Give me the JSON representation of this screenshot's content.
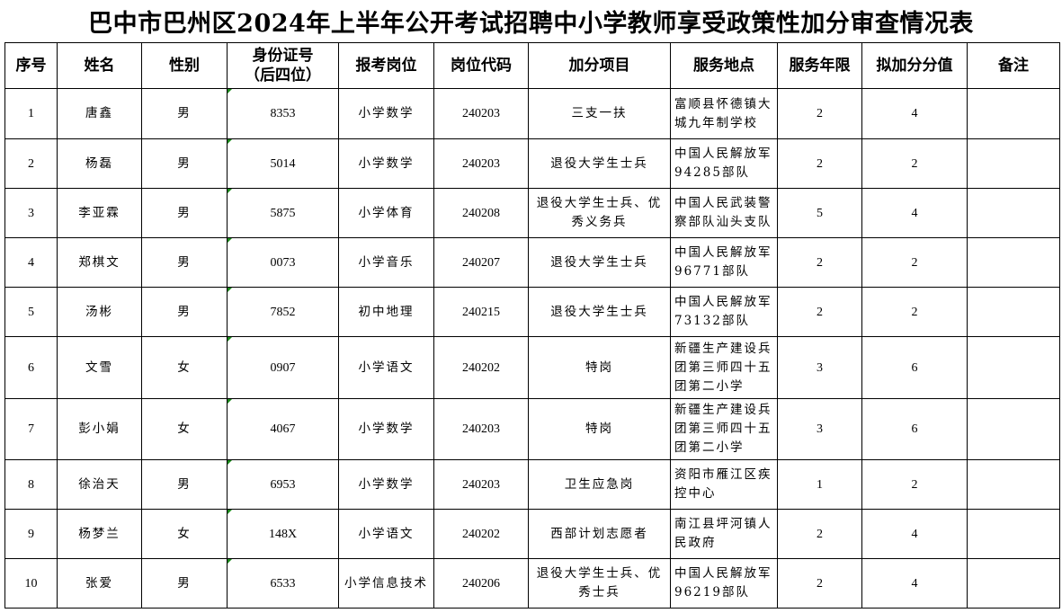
{
  "title": "巴中市巴州区2024年上半年公开考试招聘中小学教师享受政策性加分审查情况表",
  "headers": [
    "序号",
    "姓名",
    "性别",
    "身份证号\n（后四位）",
    "报考岗位",
    "岗位代码",
    "加分项目",
    "服务地点",
    "服务年限",
    "拟加分分值",
    "备注"
  ],
  "header_id_line1": "身份证号",
  "header_id_line2": "（后四位）",
  "rows": [
    {
      "no": "1",
      "name": "唐鑫",
      "gender": "男",
      "id": "8353",
      "post": "小学数学",
      "code": "240203",
      "item": "三支一扶",
      "place": "富顺县怀德镇大城九年制学校",
      "years": "2",
      "points": "4",
      "note": ""
    },
    {
      "no": "2",
      "name": "杨磊",
      "gender": "男",
      "id": "5014",
      "post": "小学数学",
      "code": "240203",
      "item": "退役大学生士兵",
      "place": "中国人民解放军94285部队",
      "years": "2",
      "points": "2",
      "note": ""
    },
    {
      "no": "3",
      "name": "李亚霖",
      "gender": "男",
      "id": "5875",
      "post": "小学体育",
      "code": "240208",
      "item": "退役大学生士兵、优秀义务兵",
      "place": "中国人民武装警察部队汕头支队",
      "years": "5",
      "points": "4",
      "note": ""
    },
    {
      "no": "4",
      "name": "郑棋文",
      "gender": "男",
      "id": "0073",
      "post": "小学音乐",
      "code": "240207",
      "item": "退役大学生士兵",
      "place": "中国人民解放军96771部队",
      "years": "2",
      "points": "2",
      "note": ""
    },
    {
      "no": "5",
      "name": "汤彬",
      "gender": "男",
      "id": "7852",
      "post": "初中地理",
      "code": "240215",
      "item": "退役大学生士兵",
      "place": "中国人民解放军73132部队",
      "years": "2",
      "points": "2",
      "note": ""
    },
    {
      "no": "6",
      "name": "文雪",
      "gender": "女",
      "id": "0907",
      "post": "小学语文",
      "code": "240202",
      "item": "特岗",
      "place": "新疆生产建设兵团第三师四十五团第二小学",
      "years": "3",
      "points": "6",
      "note": ""
    },
    {
      "no": "7",
      "name": "彭小娟",
      "gender": "女",
      "id": "4067",
      "post": "小学数学",
      "code": "240203",
      "item": "特岗",
      "place": "新疆生产建设兵团第三师四十五团第二小学",
      "years": "3",
      "points": "6",
      "note": ""
    },
    {
      "no": "8",
      "name": "徐治天",
      "gender": "男",
      "id": "6953",
      "post": "小学数学",
      "code": "240203",
      "item": "卫生应急岗",
      "place": "资阳市雁江区疾控中心",
      "years": "1",
      "points": "2",
      "note": ""
    },
    {
      "no": "9",
      "name": "杨梦兰",
      "gender": "女",
      "id": "148X",
      "post": "小学语文",
      "code": "240202",
      "item": "西部计划志愿者",
      "place": "南江县坪河镇人民政府",
      "years": "2",
      "points": "4",
      "note": ""
    },
    {
      "no": "10",
      "name": "张爱",
      "gender": "男",
      "id": "6533",
      "post": "小学信息技术",
      "code": "240206",
      "item": "退役大学生士兵、优秀士兵",
      "place": "中国人民解放军96219部队",
      "years": "2",
      "points": "4",
      "note": ""
    }
  ]
}
